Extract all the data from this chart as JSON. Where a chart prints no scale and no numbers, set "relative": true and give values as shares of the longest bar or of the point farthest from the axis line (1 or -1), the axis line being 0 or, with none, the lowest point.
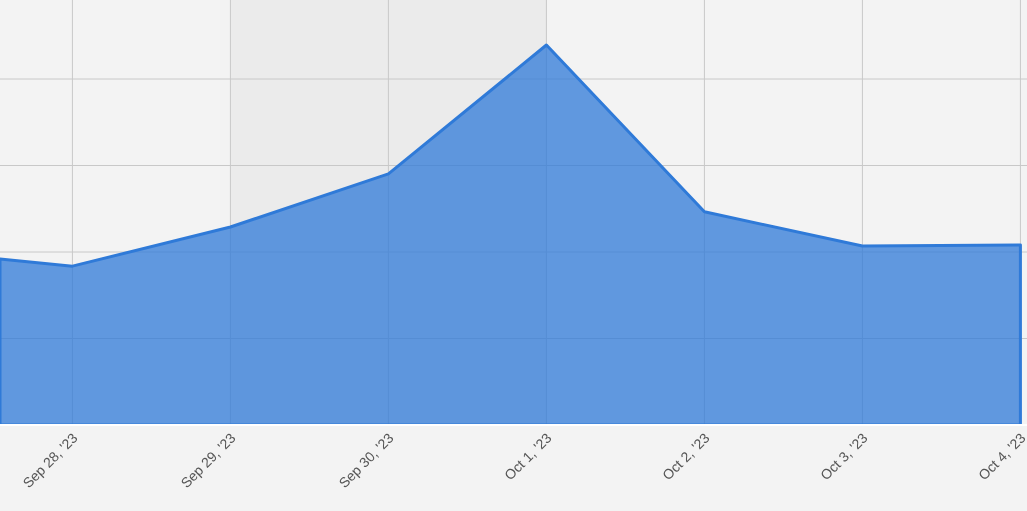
{
  "chart_data": {
    "type": "area",
    "relative": true,
    "x": [
      "2023-09-27T13:00",
      "2023-09-28",
      "2023-09-29",
      "2023-09-30",
      "2023-10-01",
      "2023-10-02",
      "2023-10-03",
      "2023-10-04"
    ],
    "series": [
      {
        "color": "#2f7ad8",
        "values": [
          0.437,
          0.418,
          0.521,
          0.661,
          1,
          0.561,
          0.471,
          0.474
        ]
      }
    ],
    "xlim": [
      "2023-09-27T13:00",
      "2023-10-04T01:00"
    ],
    "xticks": [
      {
        "value": "2023-09-28",
        "label": "Sep 28, '23"
      },
      {
        "value": "2023-09-29",
        "label": "Sep 29, '23"
      },
      {
        "value": "2023-09-30",
        "label": "Sep 30, '23"
      },
      {
        "value": "2023-10-01",
        "label": "Oct 1, '23"
      },
      {
        "value": "2023-10-02",
        "label": "Oct 2, '23"
      },
      {
        "value": "2023-10-03",
        "label": "Oct 3, '23"
      },
      {
        "value": "2023-10-04",
        "label": "Oct 4, '23"
      }
    ],
    "bands": [
      {
        "axis": "x",
        "from": "2023-09-29",
        "to": "2023-10-01",
        "color": "#ebebeb"
      }
    ],
    "grid": true
  }
}
